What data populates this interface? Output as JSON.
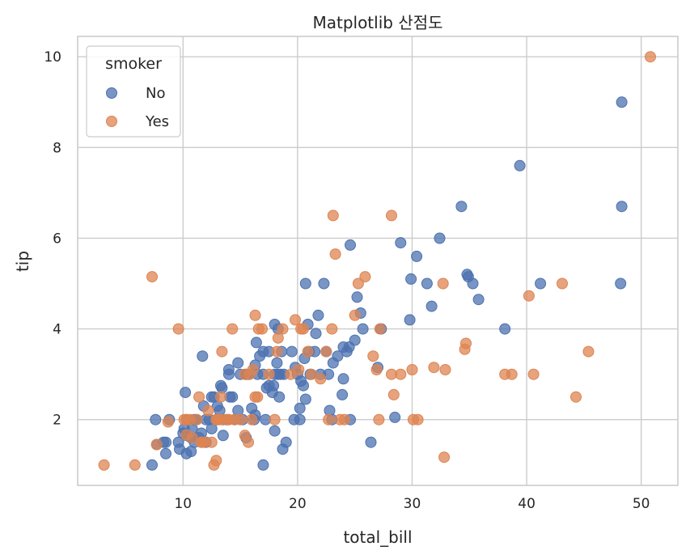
{
  "chart_data": {
    "type": "scatter",
    "title": "Matplotlib 산점도",
    "xlabel": "total_bill",
    "ylabel": "tip",
    "xlim": [
      0.8,
      53.2
    ],
    "ylim": [
      0.55,
      10.45
    ],
    "xticks": [
      10,
      20,
      30,
      40,
      50
    ],
    "yticks": [
      2,
      4,
      6,
      8,
      10
    ],
    "grid": true,
    "legend": {
      "title": "smoker",
      "placement": "top-left"
    },
    "series": [
      {
        "name": "No",
        "color": "#4c72b0",
        "points": [
          [
            7.3,
            1.0
          ],
          [
            7.7,
            1.45
          ],
          [
            7.6,
            2.0
          ],
          [
            8.3,
            1.5
          ],
          [
            8.5,
            1.25
          ],
          [
            8.8,
            2.0
          ],
          [
            8.5,
            1.5
          ],
          [
            9.6,
            1.5
          ],
          [
            9.7,
            1.35
          ],
          [
            10.0,
            1.7
          ],
          [
            10.1,
            1.8
          ],
          [
            10.3,
            1.25
          ],
          [
            10.3,
            1.65
          ],
          [
            10.2,
            2.6
          ],
          [
            10.7,
            1.3
          ],
          [
            10.7,
            1.6
          ],
          [
            10.8,
            1.8
          ],
          [
            11.0,
            1.5
          ],
          [
            11.2,
            2.0
          ],
          [
            11.4,
            1.6
          ],
          [
            11.6,
            1.7
          ],
          [
            11.7,
            3.4
          ],
          [
            11.8,
            2.3
          ],
          [
            12.0,
            1.5
          ],
          [
            12.3,
            2.0
          ],
          [
            12.5,
            1.8
          ],
          [
            12.5,
            2.5
          ],
          [
            12.7,
            2.5
          ],
          [
            13.0,
            2.0
          ],
          [
            13.0,
            2.3
          ],
          [
            13.3,
            2.75
          ],
          [
            13.4,
            2.7
          ],
          [
            13.5,
            2.0
          ],
          [
            13.5,
            1.65
          ],
          [
            13.8,
            2.0
          ],
          [
            14.0,
            3.0
          ],
          [
            14.1,
            2.5
          ],
          [
            14.3,
            2.5
          ],
          [
            14.0,
            3.1
          ],
          [
            14.5,
            2.0
          ],
          [
            14.8,
            2.2
          ],
          [
            14.8,
            3.25
          ],
          [
            15.0,
            3.0
          ],
          [
            15.2,
            2.0
          ],
          [
            15.5,
            1.6
          ],
          [
            15.7,
            3.0
          ],
          [
            16.0,
            2.25
          ],
          [
            16.2,
            2.0
          ],
          [
            16.3,
            2.1
          ],
          [
            16.4,
            3.7
          ],
          [
            16.5,
            3.0
          ],
          [
            16.7,
            3.4
          ],
          [
            17.0,
            3.0
          ],
          [
            17.0,
            3.5
          ],
          [
            17.2,
            2.0
          ],
          [
            17.3,
            2.7
          ],
          [
            17.5,
            2.75
          ],
          [
            17.5,
            3.5
          ],
          [
            17.8,
            2.6
          ],
          [
            17.9,
            2.75
          ],
          [
            18.0,
            4.1
          ],
          [
            18.0,
            3.0
          ],
          [
            18.2,
            3.25
          ],
          [
            18.3,
            3.0
          ],
          [
            18.4,
            2.5
          ],
          [
            18.5,
            3.0
          ],
          [
            18.6,
            3.5
          ],
          [
            18.8,
            3.0
          ],
          [
            17.0,
            1.0
          ],
          [
            18.7,
            1.35
          ],
          [
            18.3,
            4.0
          ],
          [
            18.0,
            1.75
          ],
          [
            19.0,
            1.5
          ],
          [
            19.5,
            3.5
          ],
          [
            19.7,
            2.0
          ],
          [
            19.8,
            3.15
          ],
          [
            20.0,
            3.0
          ],
          [
            20.2,
            2.0
          ],
          [
            20.3,
            2.85
          ],
          [
            20.5,
            2.75
          ],
          [
            20.6,
            3.35
          ],
          [
            20.7,
            2.45
          ],
          [
            20.9,
            4.1
          ],
          [
            21.0,
            3.5
          ],
          [
            21.1,
            3.0
          ],
          [
            21.5,
            3.5
          ],
          [
            21.6,
            3.9
          ],
          [
            21.8,
            4.3
          ],
          [
            22.0,
            3.0
          ],
          [
            22.3,
            5.0
          ],
          [
            22.5,
            3.5
          ],
          [
            22.7,
            3.0
          ],
          [
            22.8,
            2.2
          ],
          [
            23.1,
            3.25
          ],
          [
            23.5,
            3.4
          ],
          [
            23.9,
            2.55
          ],
          [
            24.0,
            3.6
          ],
          [
            24.0,
            2.9
          ],
          [
            24.3,
            3.5
          ],
          [
            24.5,
            3.6
          ],
          [
            24.6,
            5.85
          ],
          [
            25.0,
            3.75
          ],
          [
            25.2,
            4.7
          ],
          [
            25.5,
            4.35
          ],
          [
            25.7,
            4.0
          ],
          [
            27.0,
            3.15
          ],
          [
            27.3,
            4.0
          ],
          [
            28.5,
            2.05
          ],
          [
            29.0,
            5.9
          ],
          [
            29.8,
            4.2
          ],
          [
            29.9,
            5.1
          ],
          [
            30.4,
            5.6
          ],
          [
            31.3,
            5.0
          ],
          [
            31.7,
            4.5
          ],
          [
            32.4,
            6.0
          ],
          [
            34.3,
            6.7
          ],
          [
            34.8,
            5.2
          ],
          [
            34.9,
            5.15
          ],
          [
            35.3,
            5.0
          ],
          [
            35.8,
            4.65
          ],
          [
            38.1,
            4.0
          ],
          [
            39.4,
            7.6
          ],
          [
            41.2,
            5.0
          ],
          [
            48.2,
            5.0
          ],
          [
            48.3,
            6.7
          ],
          [
            48.3,
            9.0
          ],
          [
            26.4,
            1.5
          ],
          [
            24.6,
            2.0
          ],
          [
            20.7,
            5.0
          ],
          [
            20.2,
            2.25
          ],
          [
            23.0,
            2.0
          ],
          [
            15.5,
            3.0
          ],
          [
            16.3,
            3.2
          ],
          [
            12.9,
            2.0
          ],
          [
            13.2,
            2.2
          ],
          [
            10.3,
            2.0
          ],
          [
            11.0,
            2.0
          ],
          [
            12.0,
            2.0
          ]
        ]
      },
      {
        "name": "Yes",
        "color": "#dd8452",
        "points": [
          [
            3.1,
            1.0
          ],
          [
            5.8,
            1.0
          ],
          [
            7.3,
            5.15
          ],
          [
            7.7,
            1.45
          ],
          [
            8.7,
            1.95
          ],
          [
            9.6,
            4.0
          ],
          [
            10.1,
            2.0
          ],
          [
            10.3,
            2.0
          ],
          [
            10.6,
            2.0
          ],
          [
            10.8,
            1.6
          ],
          [
            11.2,
            2.0
          ],
          [
            11.4,
            2.5
          ],
          [
            11.6,
            1.5
          ],
          [
            11.9,
            1.5
          ],
          [
            12.2,
            2.2
          ],
          [
            12.5,
            1.5
          ],
          [
            12.7,
            1.0
          ],
          [
            12.9,
            1.1
          ],
          [
            12.9,
            2.0
          ],
          [
            13.0,
            2.0
          ],
          [
            13.2,
            2.0
          ],
          [
            13.3,
            2.5
          ],
          [
            13.4,
            3.5
          ],
          [
            13.5,
            2.0
          ],
          [
            13.9,
            2.0
          ],
          [
            14.3,
            4.0
          ],
          [
            14.5,
            2.0
          ],
          [
            15.0,
            2.0
          ],
          [
            15.4,
            1.65
          ],
          [
            15.4,
            3.0
          ],
          [
            15.7,
            1.5
          ],
          [
            15.8,
            3.0
          ],
          [
            16.0,
            2.0
          ],
          [
            16.1,
            3.1
          ],
          [
            16.3,
            4.3
          ],
          [
            16.3,
            2.5
          ],
          [
            16.5,
            2.5
          ],
          [
            16.6,
            4.0
          ],
          [
            16.9,
            4.0
          ],
          [
            17.5,
            3.0
          ],
          [
            18.0,
            2.0
          ],
          [
            18.2,
            3.5
          ],
          [
            18.3,
            3.8
          ],
          [
            18.7,
            4.0
          ],
          [
            19.4,
            3.0
          ],
          [
            19.8,
            4.2
          ],
          [
            20.1,
            3.1
          ],
          [
            20.3,
            4.0
          ],
          [
            20.5,
            4.0
          ],
          [
            20.9,
            3.5
          ],
          [
            21.2,
            3.0
          ],
          [
            22.0,
            2.9
          ],
          [
            22.5,
            3.5
          ],
          [
            22.7,
            2.0
          ],
          [
            23.0,
            4.0
          ],
          [
            23.1,
            6.5
          ],
          [
            23.3,
            5.65
          ],
          [
            23.7,
            2.0
          ],
          [
            24.1,
            2.0
          ],
          [
            25.0,
            4.3
          ],
          [
            25.3,
            5.0
          ],
          [
            25.9,
            5.15
          ],
          [
            26.6,
            3.4
          ],
          [
            26.9,
            3.1
          ],
          [
            27.1,
            2.0
          ],
          [
            27.2,
            4.0
          ],
          [
            28.2,
            6.5
          ],
          [
            28.2,
            3.0
          ],
          [
            28.4,
            2.55
          ],
          [
            29.0,
            3.0
          ],
          [
            30.1,
            2.0
          ],
          [
            30.0,
            3.1
          ],
          [
            30.5,
            2.0
          ],
          [
            31.9,
            3.15
          ],
          [
            32.7,
            5.0
          ],
          [
            32.8,
            1.17
          ],
          [
            32.9,
            3.1
          ],
          [
            34.6,
            3.55
          ],
          [
            34.7,
            3.68
          ],
          [
            38.1,
            3.0
          ],
          [
            38.7,
            3.0
          ],
          [
            40.2,
            4.73
          ],
          [
            40.6,
            3.0
          ],
          [
            43.1,
            5.0
          ],
          [
            44.3,
            2.5
          ],
          [
            45.4,
            3.5
          ],
          [
            50.8,
            10.0
          ],
          [
            10.3,
            1.66
          ],
          [
            11.6,
            1.5
          ],
          [
            13.0,
            2.0
          ],
          [
            14.0,
            2.0
          ]
        ]
      }
    ]
  }
}
